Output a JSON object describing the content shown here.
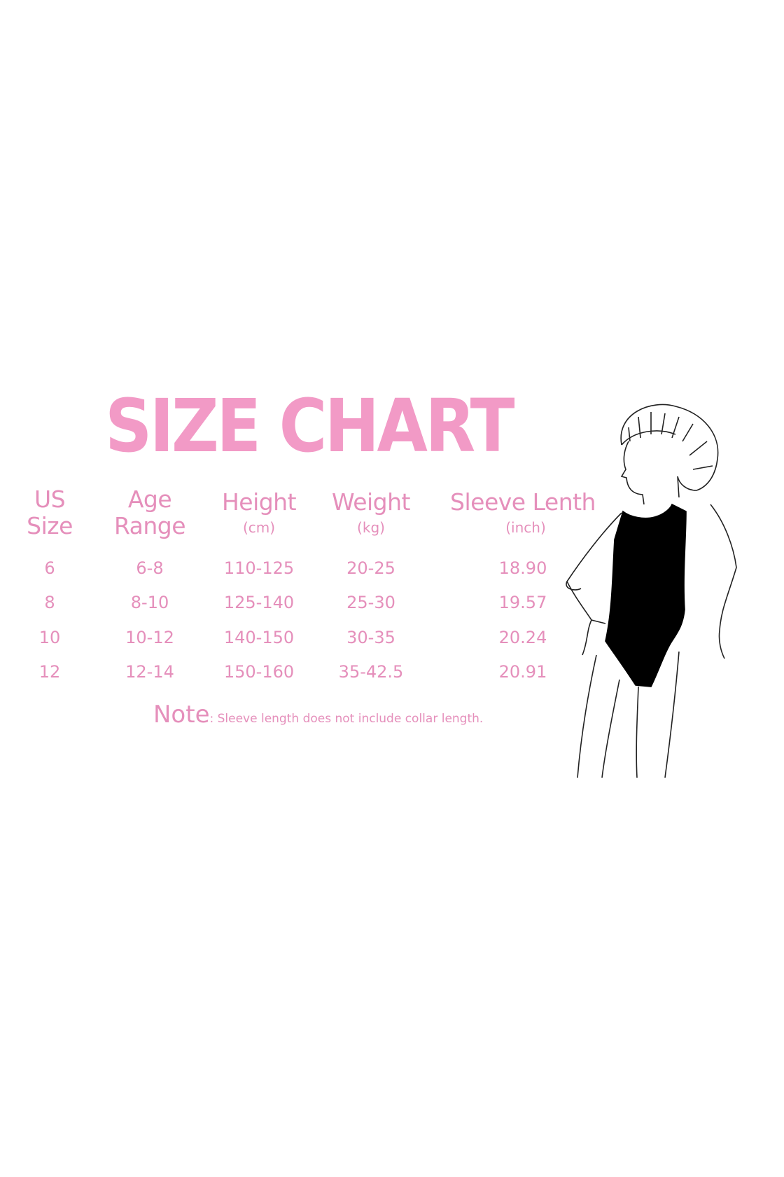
{
  "title": "SIZE CHART",
  "headers": [
    {
      "line1": "US",
      "line2": "Size",
      "unit": ""
    },
    {
      "line1": "Age",
      "line2": "Range",
      "unit": ""
    },
    {
      "line1": "Height",
      "line2": "",
      "unit": "(cm)"
    },
    {
      "line1": "Weight",
      "line2": "",
      "unit": "(kg)"
    },
    {
      "line1": "Sleeve Lenth",
      "line2": "",
      "unit": "(inch)"
    }
  ],
  "rows": [
    [
      "6",
      "6-8",
      "110-125",
      "20-25",
      "18.90"
    ],
    [
      "8",
      "8-10",
      "125-140",
      "25-30",
      "19.57"
    ],
    [
      "10",
      "10-12",
      "140-150",
      "30-35",
      "20.24"
    ],
    [
      "12",
      "12-14",
      "150-160",
      "35-42.5",
      "20.91"
    ]
  ],
  "note": {
    "label": "Note",
    "text": ": Sleeve length does not include collar length."
  },
  "colors": {
    "title": "#f29ac6",
    "text": "#e58fbb",
    "leotard": "#000000"
  },
  "illustration": "girl-in-black-leotard"
}
